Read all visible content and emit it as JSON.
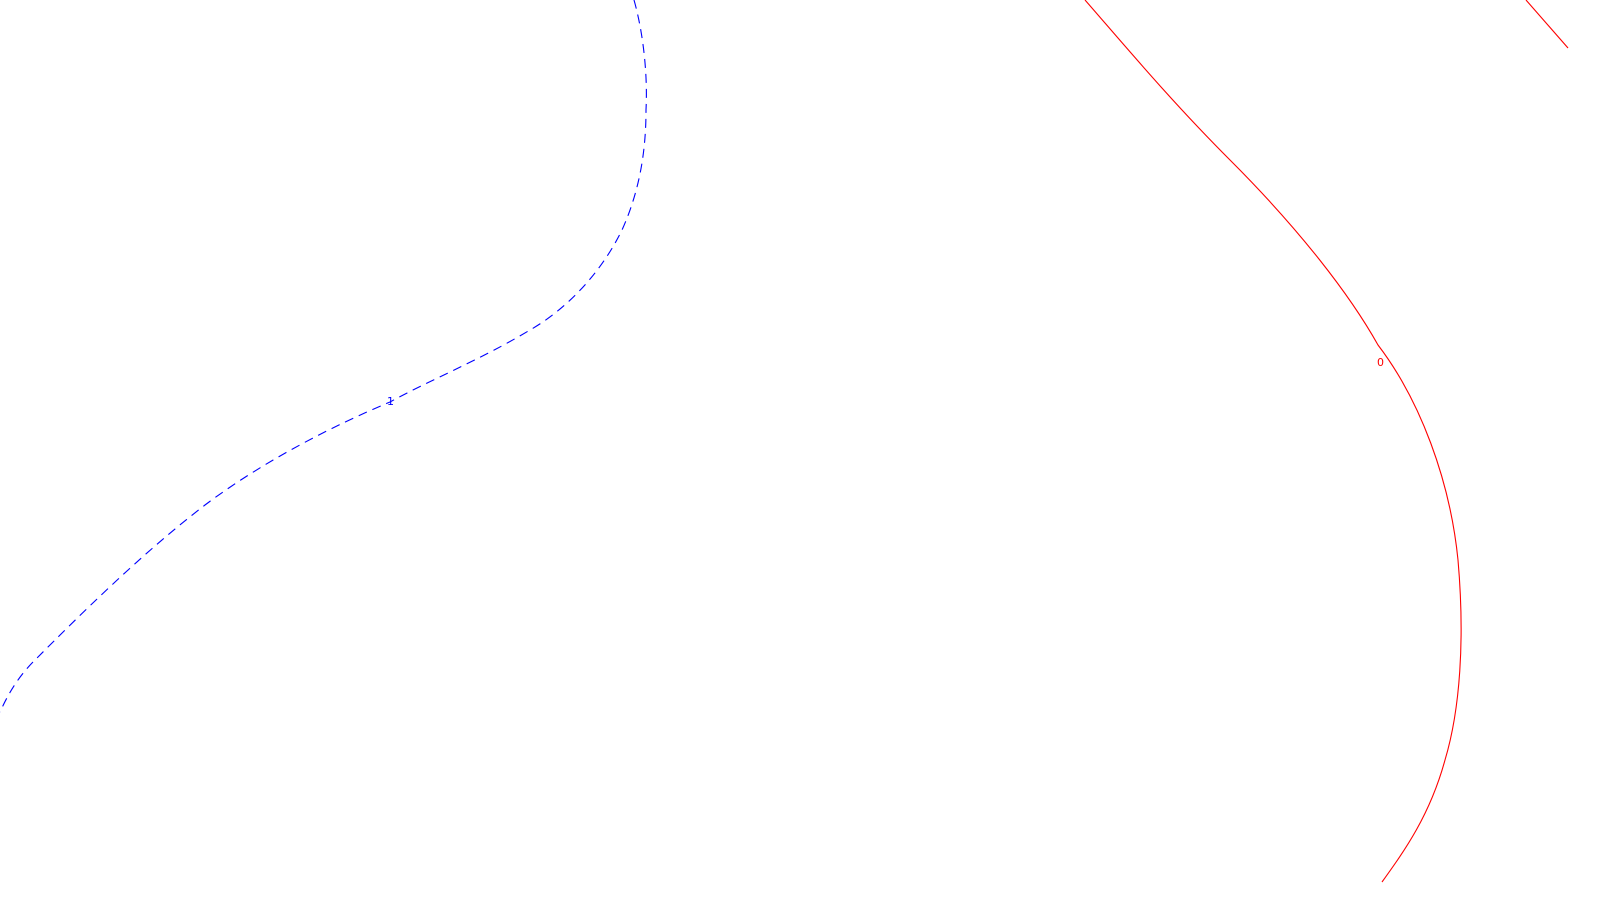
{
  "chart_data": {
    "type": "line",
    "title": "",
    "xlabel": "",
    "ylabel": "",
    "grid": false,
    "series": [
      {
        "label": "1",
        "color": "#0000ff",
        "style": "dashed"
      },
      {
        "label": "0",
        "color": "#ff0000",
        "style": "solid"
      }
    ]
  }
}
